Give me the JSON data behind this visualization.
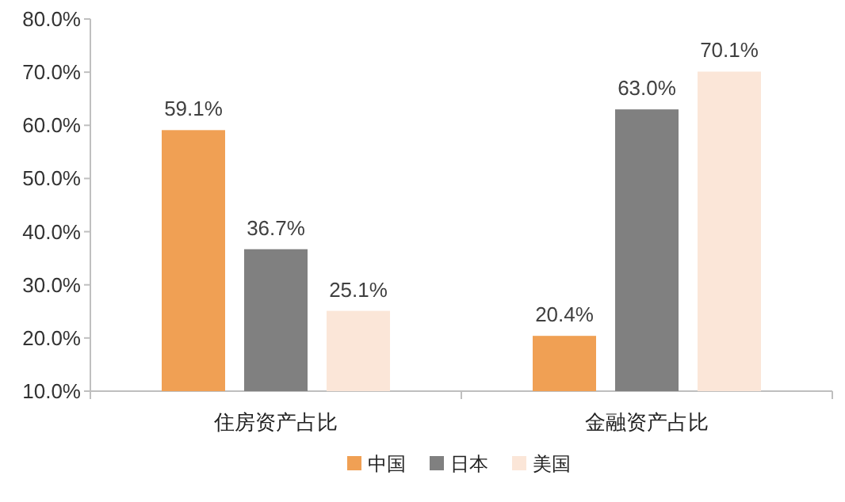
{
  "chart_data": {
    "type": "bar",
    "categories": [
      "住房资产占比",
      "金融资产占比"
    ],
    "series": [
      {
        "name": "中国",
        "color": "#f0a054",
        "values": [
          59.1,
          20.4
        ],
        "value_labels": [
          "59.1%",
          "20.4%"
        ]
      },
      {
        "name": "日本",
        "color": "#808080",
        "values": [
          36.7,
          63.0
        ],
        "value_labels": [
          "36.7%",
          "63.0%"
        ]
      },
      {
        "name": "美国",
        "color": "#fbe6d8",
        "values": [
          25.1,
          70.1
        ],
        "value_labels": [
          "25.1%",
          "70.1%"
        ]
      }
    ],
    "ylim": [
      10,
      80
    ],
    "yticks": [
      {
        "value": 10,
        "label": "10.0%"
      },
      {
        "value": 20,
        "label": "20.0%"
      },
      {
        "value": 30,
        "label": "30.0%"
      },
      {
        "value": 40,
        "label": "40.0%"
      },
      {
        "value": 50,
        "label": "50.0%"
      },
      {
        "value": 60,
        "label": "60.0%"
      },
      {
        "value": 70,
        "label": "70.0%"
      },
      {
        "value": 80,
        "label": "80.0%"
      }
    ],
    "legend": "bottom"
  }
}
